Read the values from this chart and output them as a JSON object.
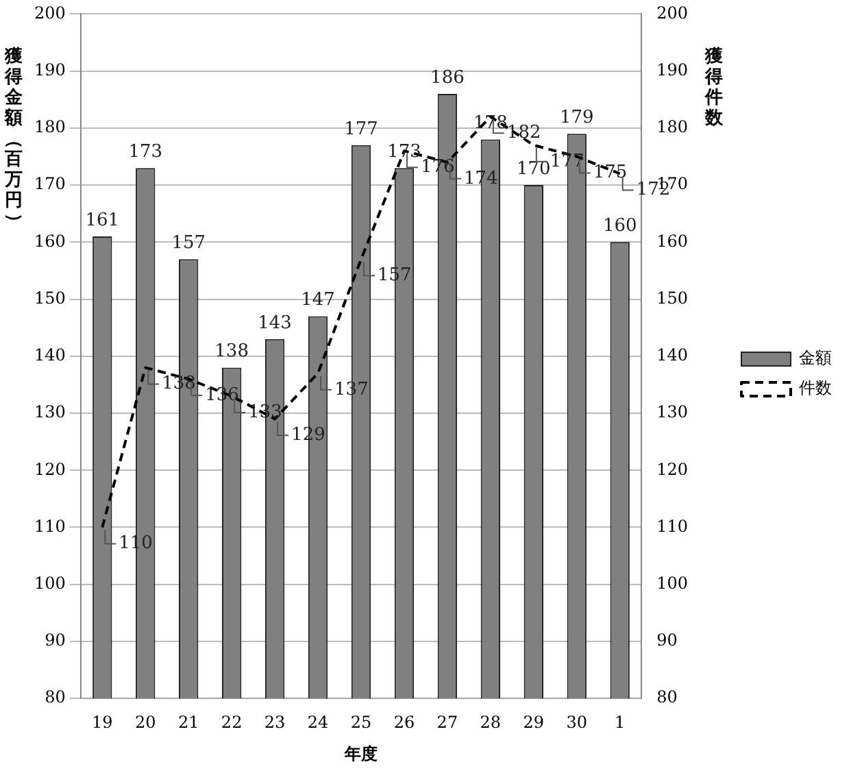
{
  "chart_data": {
    "type": "bar",
    "xlabel": "年度",
    "ylabel": "獲得金額（百万円）",
    "y2label": "獲得件数",
    "categories": [
      "19",
      "20",
      "21",
      "22",
      "23",
      "24",
      "25",
      "26",
      "27",
      "28",
      "29",
      "30",
      "1"
    ],
    "series": [
      {
        "name": "金額",
        "color": "#808080",
        "values": [
          161,
          173,
          157,
          138,
          143,
          147,
          177,
          173,
          186,
          178,
          170,
          179,
          160
        ]
      },
      {
        "name": "件数",
        "type": "line",
        "axis": "y2",
        "color": "#000000",
        "line_style": "dashed",
        "marker": "none",
        "values": [
          110,
          138,
          136,
          133,
          129,
          137,
          157,
          176,
          174,
          182,
          177,
          175,
          172
        ]
      }
    ],
    "ylim": [
      80,
      200
    ],
    "yticks": [
      80,
      90,
      100,
      110,
      120,
      130,
      140,
      150,
      160,
      170,
      180,
      190,
      200
    ],
    "y2lim": [
      80,
      200
    ],
    "y2ticks": [
      80,
      90,
      100,
      110,
      120,
      130,
      140,
      150,
      160,
      170,
      180,
      190,
      200
    ],
    "grid": "y",
    "legend": "right",
    "data_labels": true
  }
}
